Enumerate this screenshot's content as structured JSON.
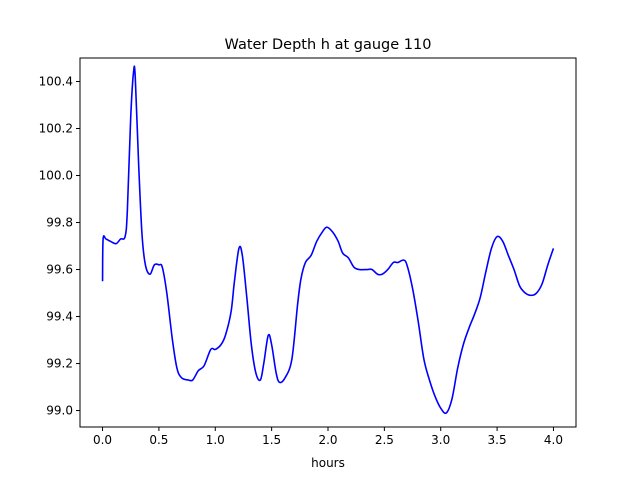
{
  "chart_data": {
    "type": "line",
    "title": "Water Depth h at gauge 110",
    "xlabel": "hours",
    "ylabel": "",
    "xlim": [
      -0.2,
      4.2
    ],
    "ylim": [
      98.93,
      100.5
    ],
    "xticks": [
      0.0,
      0.5,
      1.0,
      1.5,
      2.0,
      2.5,
      3.0,
      3.5,
      4.0
    ],
    "xtick_labels": [
      "0.0",
      "0.5",
      "1.0",
      "1.5",
      "2.0",
      "2.5",
      "3.0",
      "3.5",
      "4.0"
    ],
    "yticks": [
      99.0,
      99.2,
      99.4,
      99.6,
      99.8,
      100.0,
      100.2,
      100.4
    ],
    "ytick_labels": [
      "99.0",
      "99.2",
      "99.4",
      "99.6",
      "99.8",
      "100.0",
      "100.2",
      "100.4"
    ],
    "grid": false,
    "legend": "none",
    "series": [
      {
        "color": "#0000ff",
        "points": [
          [
            0.0,
            99.55
          ],
          [
            0.005,
            99.73
          ],
          [
            0.03,
            99.73
          ],
          [
            0.07,
            99.72
          ],
          [
            0.12,
            99.71
          ],
          [
            0.16,
            99.73
          ],
          [
            0.2,
            99.74
          ],
          [
            0.22,
            99.85
          ],
          [
            0.25,
            100.25
          ],
          [
            0.275,
            100.44
          ],
          [
            0.29,
            100.42
          ],
          [
            0.32,
            100.05
          ],
          [
            0.35,
            99.75
          ],
          [
            0.38,
            99.62
          ],
          [
            0.42,
            99.58
          ],
          [
            0.46,
            99.62
          ],
          [
            0.5,
            99.62
          ],
          [
            0.53,
            99.61
          ],
          [
            0.57,
            99.5
          ],
          [
            0.62,
            99.3
          ],
          [
            0.66,
            99.18
          ],
          [
            0.7,
            99.14
          ],
          [
            0.76,
            99.13
          ],
          [
            0.8,
            99.13
          ],
          [
            0.85,
            99.17
          ],
          [
            0.9,
            99.19
          ],
          [
            0.96,
            99.26
          ],
          [
            1.0,
            99.26
          ],
          [
            1.05,
            99.28
          ],
          [
            1.09,
            99.32
          ],
          [
            1.14,
            99.42
          ],
          [
            1.17,
            99.55
          ],
          [
            1.21,
            99.69
          ],
          [
            1.24,
            99.66
          ],
          [
            1.28,
            99.48
          ],
          [
            1.32,
            99.28
          ],
          [
            1.36,
            99.16
          ],
          [
            1.4,
            99.13
          ],
          [
            1.43,
            99.2
          ],
          [
            1.47,
            99.32
          ],
          [
            1.5,
            99.28
          ],
          [
            1.54,
            99.16
          ],
          [
            1.57,
            99.12
          ],
          [
            1.62,
            99.14
          ],
          [
            1.68,
            99.22
          ],
          [
            1.73,
            99.45
          ],
          [
            1.76,
            99.56
          ],
          [
            1.8,
            99.63
          ],
          [
            1.85,
            99.66
          ],
          [
            1.9,
            99.72
          ],
          [
            1.95,
            99.76
          ],
          [
            1.99,
            99.78
          ],
          [
            2.04,
            99.76
          ],
          [
            2.09,
            99.72
          ],
          [
            2.13,
            99.67
          ],
          [
            2.18,
            99.65
          ],
          [
            2.23,
            99.61
          ],
          [
            2.28,
            99.6
          ],
          [
            2.35,
            99.6
          ],
          [
            2.39,
            99.6
          ],
          [
            2.44,
            99.58
          ],
          [
            2.48,
            99.58
          ],
          [
            2.53,
            99.6
          ],
          [
            2.58,
            99.63
          ],
          [
            2.62,
            99.63
          ],
          [
            2.67,
            99.64
          ],
          [
            2.7,
            99.62
          ],
          [
            2.75,
            99.52
          ],
          [
            2.8,
            99.38
          ],
          [
            2.85,
            99.22
          ],
          [
            2.9,
            99.13
          ],
          [
            2.95,
            99.06
          ],
          [
            3.0,
            99.01
          ],
          [
            3.05,
            98.99
          ],
          [
            3.1,
            99.05
          ],
          [
            3.15,
            99.18
          ],
          [
            3.2,
            99.28
          ],
          [
            3.25,
            99.35
          ],
          [
            3.3,
            99.41
          ],
          [
            3.35,
            99.48
          ],
          [
            3.4,
            99.59
          ],
          [
            3.45,
            99.69
          ],
          [
            3.5,
            99.74
          ],
          [
            3.55,
            99.72
          ],
          [
            3.6,
            99.66
          ],
          [
            3.65,
            99.6
          ],
          [
            3.7,
            99.53
          ],
          [
            3.75,
            99.5
          ],
          [
            3.8,
            99.49
          ],
          [
            3.85,
            99.5
          ],
          [
            3.9,
            99.54
          ],
          [
            3.95,
            99.62
          ],
          [
            4.0,
            99.69
          ]
        ]
      }
    ]
  }
}
